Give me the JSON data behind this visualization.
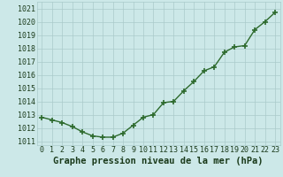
{
  "x": [
    0,
    1,
    2,
    3,
    4,
    5,
    6,
    7,
    8,
    9,
    10,
    11,
    12,
    13,
    14,
    15,
    16,
    17,
    18,
    19,
    20,
    21,
    22,
    23
  ],
  "y": [
    1012.8,
    1012.6,
    1012.4,
    1012.1,
    1011.7,
    1011.4,
    1011.3,
    1011.3,
    1011.6,
    1012.2,
    1012.8,
    1013.0,
    1013.9,
    1014.0,
    1014.8,
    1015.5,
    1016.3,
    1016.6,
    1017.7,
    1018.1,
    1018.2,
    1019.4,
    1020.0,
    1020.7
  ],
  "line_color": "#2d6a2d",
  "marker": "+",
  "marker_size": 4,
  "line_width": 1.0,
  "bg_plot": "#cce8e8",
  "bg_fig": "#cce8e8",
  "grid_color": "#aacaca",
  "xlabel": "Graphe pression niveau de la mer (hPa)",
  "xlabel_fontsize": 7.5,
  "xlabel_color": "#1a3a1a",
  "xtick_labels": [
    "0",
    "1",
    "2",
    "3",
    "4",
    "5",
    "6",
    "7",
    "8",
    "9",
    "10",
    "11",
    "12",
    "13",
    "14",
    "15",
    "16",
    "17",
    "18",
    "19",
    "20",
    "21",
    "22",
    "23"
  ],
  "ytick_labels": [
    "1011",
    "1012",
    "1013",
    "1014",
    "1015",
    "1016",
    "1017",
    "1018",
    "1019",
    "1020",
    "1021"
  ],
  "ylim": [
    1010.7,
    1021.5
  ],
  "xlim": [
    -0.5,
    23.5
  ],
  "tick_fontsize": 6.0,
  "tick_color": "#1a3a1a"
}
